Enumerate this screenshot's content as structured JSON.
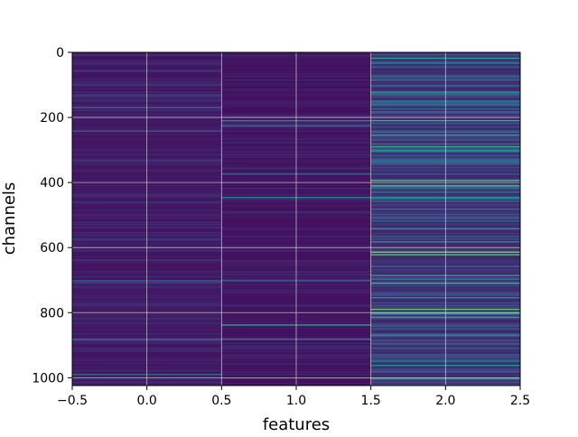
{
  "chart_data": {
    "type": "heatmap",
    "title": "",
    "xlabel": "features",
    "ylabel": "channels",
    "columns": [
      0,
      1,
      2
    ],
    "rows": 1024,
    "xlim": [
      -0.5,
      2.5
    ],
    "ylim": [
      1024,
      0
    ],
    "x_ticks": [
      "−0.5",
      "0.0",
      "0.5",
      "1.0",
      "1.5",
      "2.0",
      "2.5"
    ],
    "y_ticks": [
      "0",
      "200",
      "400",
      "600",
      "800",
      "1000"
    ],
    "grid": true,
    "colormap": "viridis",
    "column_levels": {
      "0": {
        "base": 0.06,
        "spread": 0.1,
        "highlights": [
          {
            "row": 168,
            "value": 0.32
          },
          {
            "row": 240,
            "value": 0.28
          },
          {
            "row": 700,
            "value": 0.26
          },
          {
            "row": 880,
            "value": 0.3
          },
          {
            "row": 990,
            "value": 0.34
          }
        ]
      },
      "1": {
        "base": 0.05,
        "spread": 0.08,
        "highlights": [
          {
            "row": 210,
            "value": 0.45
          },
          {
            "row": 225,
            "value": 0.35
          },
          {
            "row": 375,
            "value": 0.3
          },
          {
            "row": 445,
            "value": 0.42
          },
          {
            "row": 700,
            "value": 0.3
          },
          {
            "row": 836,
            "value": 0.55
          },
          {
            "row": 880,
            "value": 0.35
          }
        ]
      },
      "2": {
        "base": 0.12,
        "spread": 0.25,
        "highlights": [
          {
            "row": 18,
            "value": 0.55
          },
          {
            "row": 120,
            "value": 0.5
          },
          {
            "row": 150,
            "value": 0.45
          },
          {
            "row": 210,
            "value": 0.6
          },
          {
            "row": 255,
            "value": 0.55
          },
          {
            "row": 290,
            "value": 0.6
          },
          {
            "row": 300,
            "value": 0.5
          },
          {
            "row": 395,
            "value": 0.7
          },
          {
            "row": 410,
            "value": 0.65
          },
          {
            "row": 445,
            "value": 0.5
          },
          {
            "row": 540,
            "value": 0.5
          },
          {
            "row": 580,
            "value": 0.45
          },
          {
            "row": 615,
            "value": 0.78
          },
          {
            "row": 620,
            "value": 0.7
          },
          {
            "row": 685,
            "value": 0.55
          },
          {
            "row": 710,
            "value": 0.6
          },
          {
            "row": 755,
            "value": 0.5
          },
          {
            "row": 790,
            "value": 0.72
          },
          {
            "row": 800,
            "value": 0.6
          },
          {
            "row": 815,
            "value": 0.55
          },
          {
            "row": 870,
            "value": 0.45
          },
          {
            "row": 960,
            "value": 0.5
          },
          {
            "row": 1000,
            "value": 0.55
          }
        ]
      }
    }
  }
}
